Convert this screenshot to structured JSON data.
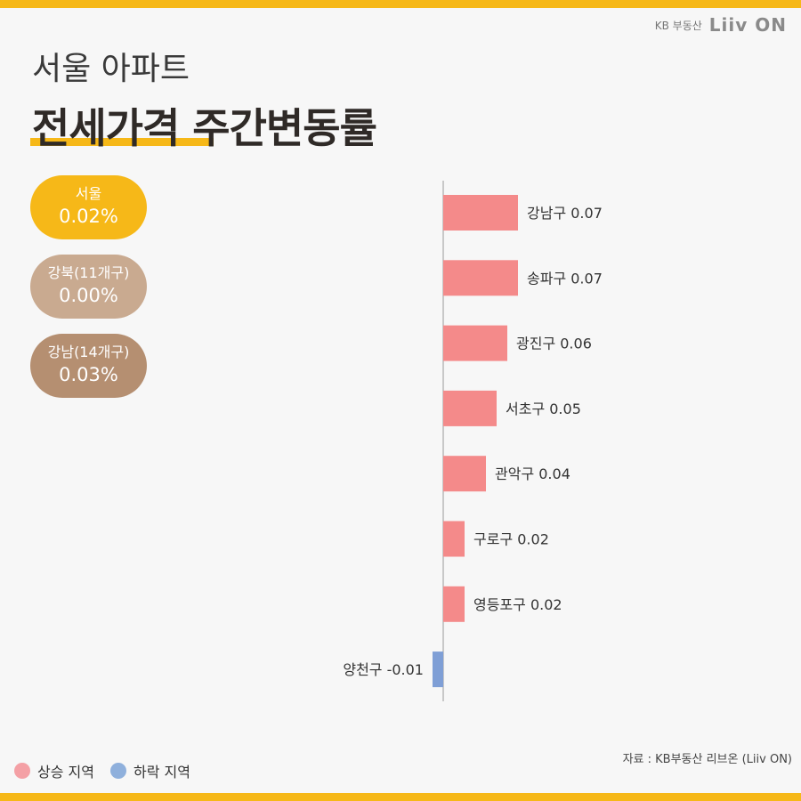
{
  "brand": {
    "kb": "KB 부동산",
    "liiv": "Liiv ON"
  },
  "title": {
    "sub": "서울 아파트",
    "main": "전세가격 주간변동률"
  },
  "summary": [
    {
      "label": "서울",
      "value": "0.02%",
      "color": "#f6b818"
    },
    {
      "label": "강북(11개구)",
      "value": "0.00%",
      "color": "#c9aa90"
    },
    {
      "label": "강남(14개구)",
      "value": "0.03%",
      "color": "#b58f71"
    }
  ],
  "chart_data": {
    "type": "bar",
    "orientation": "horizontal",
    "categories": [
      "강남구",
      "송파구",
      "광진구",
      "서초구",
      "관악구",
      "구로구",
      "영등포구",
      "양천구"
    ],
    "values": [
      0.07,
      0.07,
      0.06,
      0.05,
      0.04,
      0.02,
      0.02,
      -0.01
    ],
    "labels": [
      "강남구 0.07",
      "송파구 0.07",
      "광진구 0.06",
      "서초구 0.05",
      "관악구 0.04",
      "구로구 0.02",
      "영등포구 0.02",
      "양천구 -0.01"
    ],
    "colors": {
      "up": "#f48a8a",
      "down": "#7f9fd6"
    }
  },
  "legend": [
    {
      "label": "상승 지역",
      "color": "#f4a0a5"
    },
    {
      "label": "하락 지역",
      "color": "#8fb0dc"
    }
  ],
  "source": "자료 : KB부동산 리브온 (Liiv ON)"
}
